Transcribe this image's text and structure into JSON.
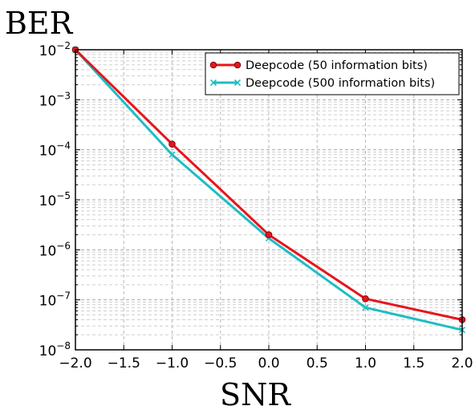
{
  "chart_data": {
    "type": "line",
    "title": "",
    "xlabel": "SNR",
    "ylabel": "BER",
    "xlim": [
      -2.0,
      2.0
    ],
    "ylim": [
      1e-08,
      0.01
    ],
    "yscale": "log",
    "grid": true,
    "x_ticks": [
      "-2.0",
      "-1.5",
      "-1.0",
      "-0.5",
      "0.0",
      "0.5",
      "1.0",
      "1.5",
      "2.0"
    ],
    "y_ticks": [
      {
        "base": "10",
        "exp": "-8"
      },
      {
        "base": "10",
        "exp": "-7"
      },
      {
        "base": "10",
        "exp": "-6"
      },
      {
        "base": "10",
        "exp": "-5"
      },
      {
        "base": "10",
        "exp": "-4"
      },
      {
        "base": "10",
        "exp": "-3"
      },
      {
        "base": "10",
        "exp": "-2"
      }
    ],
    "legend_position": "top-right",
    "series": [
      {
        "name": "Deepcode (50 information bits)",
        "color": "#e8141c",
        "marker": "circle",
        "x": [
          -2.0,
          -1.0,
          0.0,
          1.0,
          2.0
        ],
        "y": [
          0.01,
          0.00013,
          2e-06,
          1.05e-07,
          4e-08
        ]
      },
      {
        "name": "Deepcode (500 information bits)",
        "color": "#1fbdc4",
        "marker": "x",
        "x": [
          -2.0,
          -1.0,
          0.0,
          1.0,
          2.0
        ],
        "y": [
          0.01,
          8e-05,
          1.7e-06,
          7e-08,
          2.5e-08
        ]
      }
    ]
  }
}
